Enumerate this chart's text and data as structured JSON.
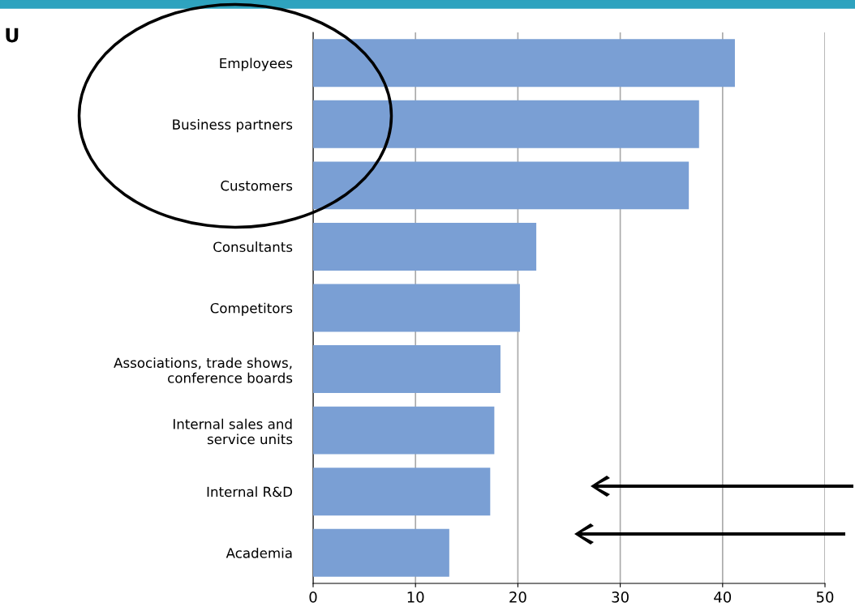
{
  "chart_data": {
    "type": "bar",
    "orientation": "horizontal",
    "categories": [
      "Employees",
      "Business partners",
      "Customers",
      "Consultants",
      "Competitors",
      "Associations, trade shows,\nconference boards",
      "Internal sales and\nservice units",
      "Internal R&D",
      "Academia"
    ],
    "values": [
      41.2,
      37.7,
      36.7,
      21.8,
      20.2,
      18.3,
      17.7,
      17.3,
      13.3
    ],
    "color": "#7a9fd4",
    "xlim": [
      0,
      50
    ],
    "xticks": [
      0,
      10,
      20,
      30,
      40,
      50
    ],
    "grid": "x",
    "annotations": [
      "U"
    ]
  }
}
